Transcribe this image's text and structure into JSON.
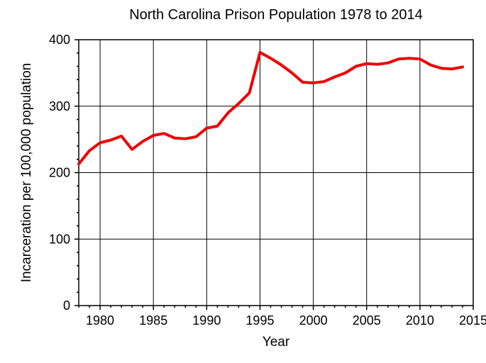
{
  "chart_data": {
    "type": "line",
    "title": "North Carolina Prison Population 1978 to 2014",
    "xlabel": "Year",
    "ylabel": "Incarceration per 100,000 population",
    "xlim": [
      1978,
      2015
    ],
    "ylim": [
      0,
      400
    ],
    "x_ticks": [
      1980,
      1985,
      1990,
      1995,
      2000,
      2005,
      2010,
      2015
    ],
    "y_ticks": [
      0,
      100,
      200,
      300,
      400
    ],
    "x_tick_labels": [
      "1980",
      "1985",
      "1990",
      "1995",
      "2000",
      "2005",
      "2010",
      "2015"
    ],
    "y_tick_labels": [
      "0",
      "100",
      "200",
      "300",
      "400"
    ],
    "grid": true,
    "line_color": "#ee0000",
    "series": [
      {
        "x": [
          1978,
          1979,
          1980,
          1981,
          1982,
          1983,
          1984,
          1985,
          1986,
          1987,
          1988,
          1989,
          1990,
          1991,
          1992,
          1993,
          1994,
          1995,
          1996,
          1997,
          1998,
          1999,
          2000,
          2001,
          2002,
          2003,
          2004,
          2005,
          2006,
          2007,
          2008,
          2009,
          2010,
          2011,
          2012,
          2013,
          2014
        ],
        "values": [
          213,
          233,
          245,
          249,
          255,
          235,
          247,
          256,
          259,
          252,
          251,
          254,
          267,
          270,
          290,
          304,
          320,
          381,
          372,
          362,
          350,
          336,
          335,
          337,
          344,
          350,
          360,
          364,
          363,
          365,
          371,
          372,
          371,
          362,
          357,
          356,
          359
        ]
      }
    ]
  }
}
